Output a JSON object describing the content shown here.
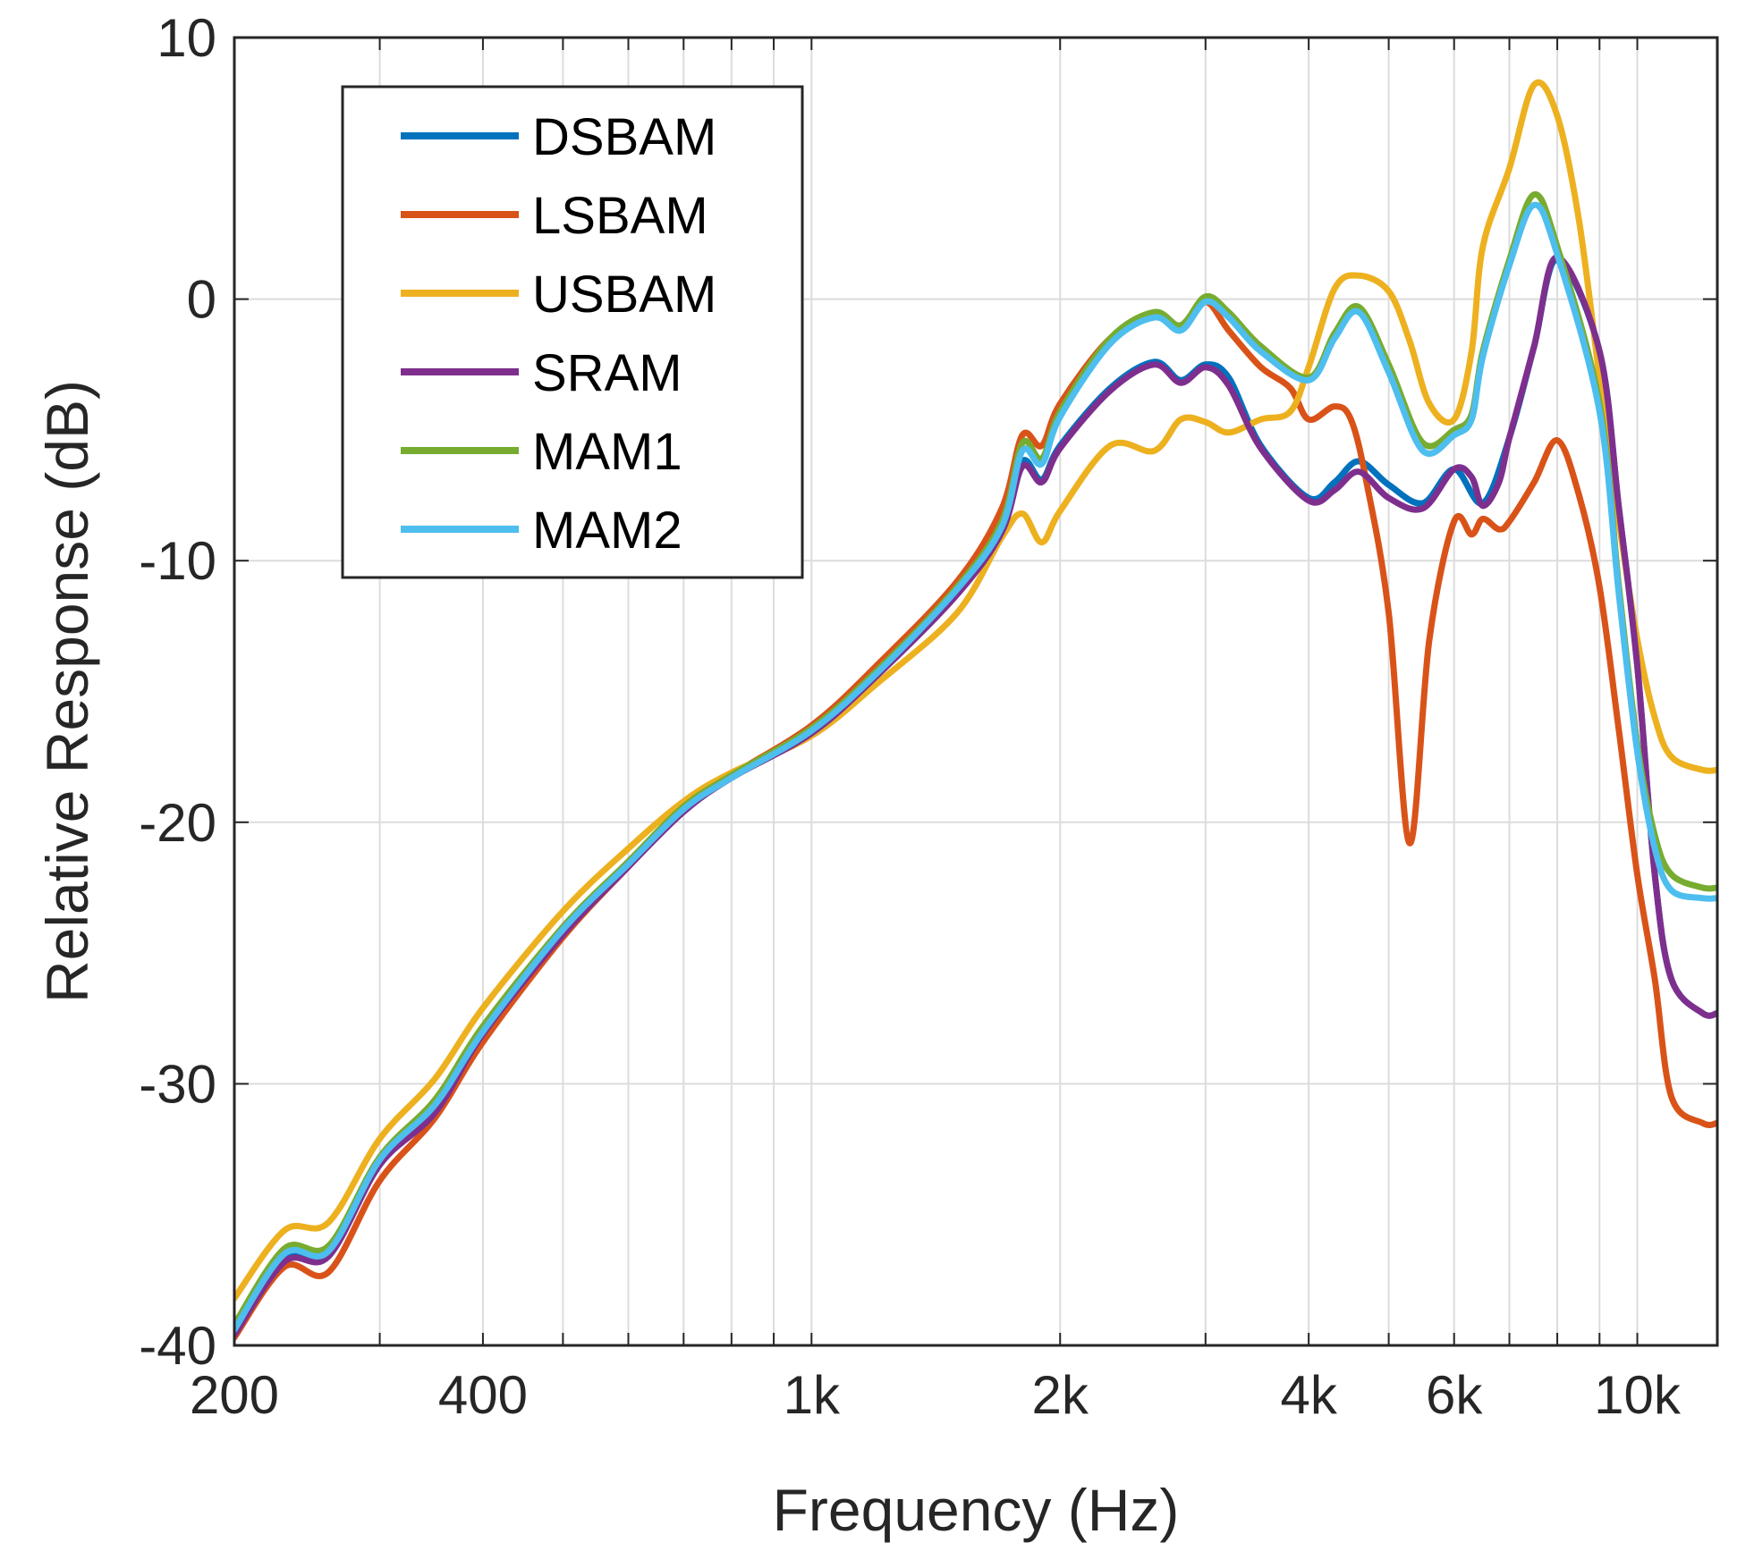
{
  "chart_data": {
    "type": "line",
    "title": "",
    "xlabel": "Frequency (Hz)",
    "ylabel": "Relative Response (dB)",
    "xscale": "log",
    "xlim": [
      200,
      12500
    ],
    "ylim": [
      -40,
      10
    ],
    "grid": true,
    "legend_position": "top-left",
    "xticks": [
      200,
      400,
      1000,
      2000,
      4000,
      6000,
      10000
    ],
    "xtick_labels": [
      "200",
      "400",
      "1k",
      "2k",
      "4k",
      "6k",
      "10k"
    ],
    "yticks": [
      -40,
      -30,
      -20,
      -10,
      0,
      10
    ],
    "ytick_labels": [
      "-40",
      "-30",
      "-20",
      "-10",
      "0",
      "10"
    ],
    "series": [
      {
        "name": "DSBAM",
        "color": "#0072BD",
        "x": [
          200,
          230,
          260,
          300,
          350,
          400,
          500,
          600,
          700,
          800,
          1000,
          1200,
          1500,
          1700,
          1800,
          1900,
          2000,
          2300,
          2600,
          2800,
          3000,
          3200,
          3500,
          4000,
          4300,
          4600,
          5000,
          5500,
          6000,
          6500,
          7000,
          7500,
          8000,
          9000,
          9500,
          10000,
          10500,
          11000,
          12000,
          12500
        ],
        "values": [
          -39.5,
          -36.7,
          -36.5,
          -33,
          -31,
          -28,
          -24.2,
          -21.6,
          -19.5,
          -18.3,
          -16.5,
          -14.3,
          -11.1,
          -8.6,
          -6.2,
          -6.9,
          -5.6,
          -3.4,
          -2.4,
          -3.1,
          -2.5,
          -3.0,
          -5.6,
          -7.6,
          -7.0,
          -6.2,
          -7.1,
          -7.8,
          -6.5,
          -7.8,
          -5.3,
          -1.8,
          1.5,
          -2,
          -8,
          -14,
          -22,
          -26,
          -27.3,
          -27.3
        ]
      },
      {
        "name": "LSBAM",
        "color": "#D95319",
        "x": [
          200,
          230,
          260,
          300,
          350,
          400,
          500,
          600,
          700,
          800,
          1000,
          1200,
          1500,
          1700,
          1800,
          1900,
          2000,
          2300,
          2600,
          2800,
          3000,
          3200,
          3500,
          3800,
          4000,
          4300,
          4500,
          4700,
          5000,
          5300,
          5600,
          6000,
          6300,
          6500,
          6800,
          7000,
          7500,
          8000,
          8500,
          9000,
          9500,
          10000,
          10500,
          11000,
          12000,
          12500
        ],
        "values": [
          -39.7,
          -37.0,
          -37.2,
          -33.7,
          -31.3,
          -28.4,
          -24.4,
          -21.7,
          -19.5,
          -18.2,
          -16.3,
          -14.0,
          -10.8,
          -8.0,
          -5.2,
          -5.6,
          -4.0,
          -1.5,
          -0.7,
          -1.0,
          -0.1,
          -1.2,
          -2.6,
          -3.4,
          -4.6,
          -4.1,
          -4.6,
          -7.0,
          -12.0,
          -20.8,
          -13.0,
          -8.5,
          -9.0,
          -8.4,
          -8.8,
          -8.5,
          -7.0,
          -5.4,
          -7.5,
          -11.0,
          -16.5,
          -22.0,
          -26.0,
          -30.5,
          -31.5,
          -31.5
        ]
      },
      {
        "name": "USBAM",
        "color": "#EDB120",
        "x": [
          200,
          230,
          260,
          300,
          350,
          400,
          500,
          600,
          700,
          800,
          1000,
          1200,
          1500,
          1700,
          1800,
          1900,
          2000,
          2300,
          2600,
          2800,
          3000,
          3200,
          3500,
          3800,
          4000,
          4300,
          4600,
          5000,
          5300,
          5600,
          6000,
          6300,
          6500,
          7000,
          7500,
          8000,
          8500,
          9000,
          9500,
          10000,
          10500,
          11000,
          12000,
          12500
        ],
        "values": [
          -38.2,
          -35.6,
          -35.3,
          -32.1,
          -29.8,
          -27.1,
          -23.4,
          -21.0,
          -19.2,
          -18.1,
          -16.7,
          -14.7,
          -12.0,
          -9.1,
          -8.2,
          -9.3,
          -8.1,
          -5.6,
          -5.8,
          -4.6,
          -4.7,
          -5.1,
          -4.6,
          -4.3,
          -2.6,
          0.4,
          0.9,
          0.3,
          -1.6,
          -4.0,
          -4.6,
          -2.0,
          2.0,
          5.0,
          8.2,
          7.0,
          3.0,
          -3.0,
          -8.5,
          -13.0,
          -16.0,
          -17.5,
          -18.0,
          -18.0
        ]
      },
      {
        "name": "SRAM",
        "color": "#7E2F8E",
        "x": [
          200,
          230,
          260,
          300,
          350,
          400,
          500,
          600,
          700,
          800,
          1000,
          1200,
          1500,
          1700,
          1800,
          1900,
          2000,
          2300,
          2600,
          2800,
          3000,
          3200,
          3500,
          4000,
          4300,
          4600,
          5000,
          5500,
          6000,
          6300,
          6500,
          6800,
          7000,
          7500,
          8000,
          9000,
          9500,
          10000,
          10500,
          11000,
          12000,
          12500
        ],
        "values": [
          -39.6,
          -36.8,
          -36.6,
          -33.1,
          -31.1,
          -28.1,
          -24.3,
          -21.7,
          -19.6,
          -18.3,
          -16.6,
          -14.4,
          -11.3,
          -8.9,
          -6.4,
          -7.0,
          -5.7,
          -3.5,
          -2.5,
          -3.2,
          -2.6,
          -3.3,
          -5.7,
          -7.7,
          -7.3,
          -6.6,
          -7.6,
          -8.0,
          -6.5,
          -6.8,
          -7.9,
          -7.0,
          -5.3,
          -1.8,
          1.6,
          -2.0,
          -8.0,
          -14.0,
          -22.0,
          -26.0,
          -27.3,
          -27.3
        ]
      },
      {
        "name": "MAM1",
        "color": "#77AC30",
        "x": [
          200,
          230,
          260,
          300,
          350,
          400,
          500,
          600,
          700,
          800,
          1000,
          1200,
          1500,
          1700,
          1800,
          1900,
          2000,
          2300,
          2600,
          2800,
          3000,
          3200,
          3500,
          4000,
          4300,
          4600,
          5000,
          5500,
          6000,
          6300,
          6500,
          7000,
          7500,
          8000,
          9000,
          9500,
          10000,
          10500,
          11000,
          12000,
          12500
        ],
        "values": [
          -39.2,
          -36.3,
          -36.2,
          -32.8,
          -30.6,
          -27.8,
          -24.0,
          -21.5,
          -19.4,
          -18.2,
          -16.4,
          -14.2,
          -11.0,
          -8.5,
          -5.5,
          -6.1,
          -4.3,
          -1.5,
          -0.5,
          -1.0,
          0.1,
          -0.5,
          -1.8,
          -3.0,
          -1.3,
          -0.3,
          -2.5,
          -5.5,
          -5.0,
          -4.4,
          -2.0,
          1.5,
          4.0,
          2.0,
          -4.0,
          -11.0,
          -17.0,
          -20.5,
          -22.0,
          -22.5,
          -22.5
        ]
      },
      {
        "name": "MAM2",
        "color": "#4DBEEE",
        "x": [
          200,
          230,
          260,
          300,
          350,
          400,
          500,
          600,
          700,
          800,
          1000,
          1200,
          1500,
          1700,
          1800,
          1900,
          2000,
          2300,
          2600,
          2800,
          3000,
          3200,
          3500,
          4000,
          4300,
          4600,
          5000,
          5500,
          6000,
          6300,
          6500,
          7000,
          7500,
          8000,
          9000,
          9500,
          10000,
          10500,
          11000,
          12000,
          12500
        ],
        "values": [
          -39.4,
          -36.5,
          -36.4,
          -32.9,
          -30.8,
          -28.0,
          -24.1,
          -21.6,
          -19.5,
          -18.3,
          -16.5,
          -14.3,
          -11.1,
          -8.7,
          -5.8,
          -6.3,
          -4.5,
          -1.7,
          -0.7,
          -1.2,
          -0.1,
          -0.7,
          -2.0,
          -3.1,
          -1.5,
          -0.5,
          -2.8,
          -5.8,
          -5.2,
          -4.6,
          -2.2,
          1.3,
          3.6,
          1.7,
          -4.3,
          -11.3,
          -17.3,
          -21.0,
          -22.6,
          -22.9,
          -22.9
        ]
      }
    ]
  }
}
